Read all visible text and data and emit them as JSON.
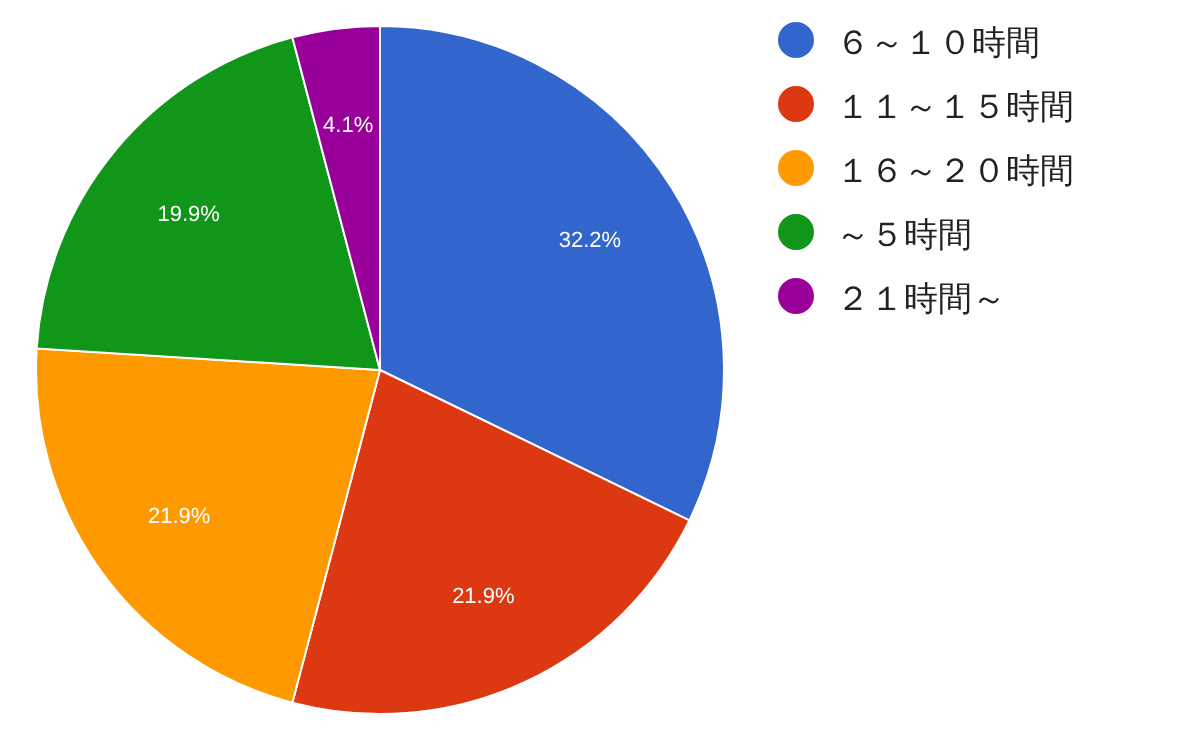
{
  "chart_data": {
    "type": "pie",
    "categories": [
      "６～１０時間",
      "１１～１５時間",
      "１６～２０時間",
      "～５時間",
      "２１時間～"
    ],
    "values": [
      32.2,
      21.9,
      21.9,
      19.9,
      4.1
    ],
    "colors": [
      "#3366cc",
      "#dc3912",
      "#ff9900",
      "#109618",
      "#990099"
    ],
    "value_labels": [
      "32.2%",
      "21.9%",
      "21.9%",
      "19.9%",
      "4.1%"
    ],
    "legend": "top right"
  }
}
